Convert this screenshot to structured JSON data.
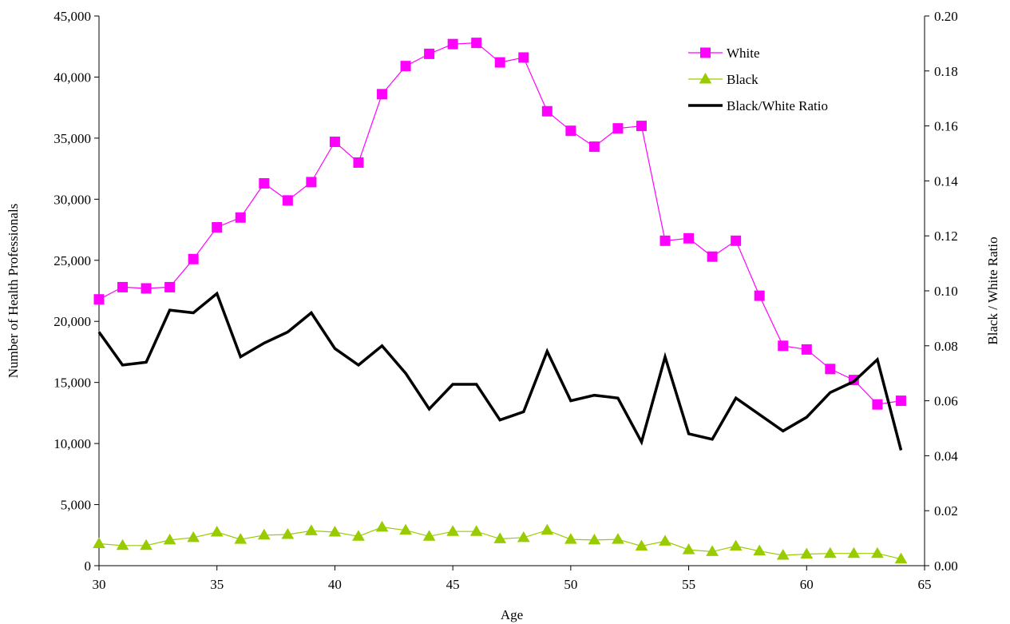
{
  "chart_data": {
    "type": "line",
    "xlabel": "Age",
    "ylabel_left": "Number of Health Professionals",
    "ylabel_right": "Black / White Ratio",
    "xlim": [
      30,
      65
    ],
    "x_ticks": [
      30,
      35,
      40,
      45,
      50,
      55,
      60,
      65
    ],
    "ylim_left": [
      0,
      45000
    ],
    "y_ticks_left": [
      "0",
      "5,000",
      "10,000",
      "15,000",
      "20,000",
      "25,000",
      "30,000",
      "35,000",
      "40,000",
      "45,000"
    ],
    "ylim_right": [
      0,
      0.2
    ],
    "y_ticks_right": [
      "0.00",
      "0.02",
      "0.04",
      "0.06",
      "0.08",
      "0.10",
      "0.12",
      "0.14",
      "0.16",
      "0.18",
      "0.20"
    ],
    "grid": false,
    "legend_position": "top-right",
    "x": [
      30,
      31,
      32,
      33,
      34,
      35,
      36,
      37,
      38,
      39,
      40,
      41,
      42,
      43,
      44,
      45,
      46,
      47,
      48,
      49,
      50,
      51,
      52,
      53,
      54,
      55,
      56,
      57,
      58,
      59,
      60,
      61,
      62,
      63,
      64
    ],
    "series": [
      {
        "name": "White",
        "axis": "left",
        "color": "#ff00ff",
        "marker": "square",
        "values": [
          21800,
          22800,
          22700,
          22800,
          25100,
          27700,
          28500,
          31300,
          29900,
          31400,
          34700,
          33000,
          38600,
          40900,
          41900,
          42700,
          42800,
          41200,
          41600,
          37200,
          35600,
          34300,
          35800,
          36000,
          26600,
          26800,
          25300,
          26600,
          22100,
          18000,
          17700,
          16100,
          15200,
          13200,
          13500
        ]
      },
      {
        "name": "Black",
        "axis": "left",
        "color": "#99cc00",
        "marker": "triangle",
        "values": [
          1800,
          1650,
          1650,
          2100,
          2300,
          2750,
          2150,
          2500,
          2550,
          2850,
          2750,
          2400,
          3150,
          2900,
          2400,
          2800,
          2800,
          2200,
          2300,
          2900,
          2150,
          2100,
          2150,
          1600,
          2000,
          1300,
          1150,
          1600,
          1200,
          850,
          950,
          1000,
          1000,
          1000,
          550
        ]
      },
      {
        "name": "Black/White Ratio",
        "axis": "right",
        "color": "#000000",
        "marker": "none",
        "values": [
          0.085,
          0.073,
          0.074,
          0.093,
          0.092,
          0.099,
          0.076,
          0.081,
          0.085,
          0.092,
          0.079,
          0.073,
          0.08,
          0.07,
          0.057,
          0.066,
          0.066,
          0.053,
          0.056,
          0.078,
          0.06,
          0.062,
          0.061,
          0.045,
          0.076,
          0.048,
          0.046,
          0.061,
          0.055,
          0.049,
          0.054,
          0.063,
          0.067,
          0.075,
          0.042
        ]
      }
    ]
  }
}
